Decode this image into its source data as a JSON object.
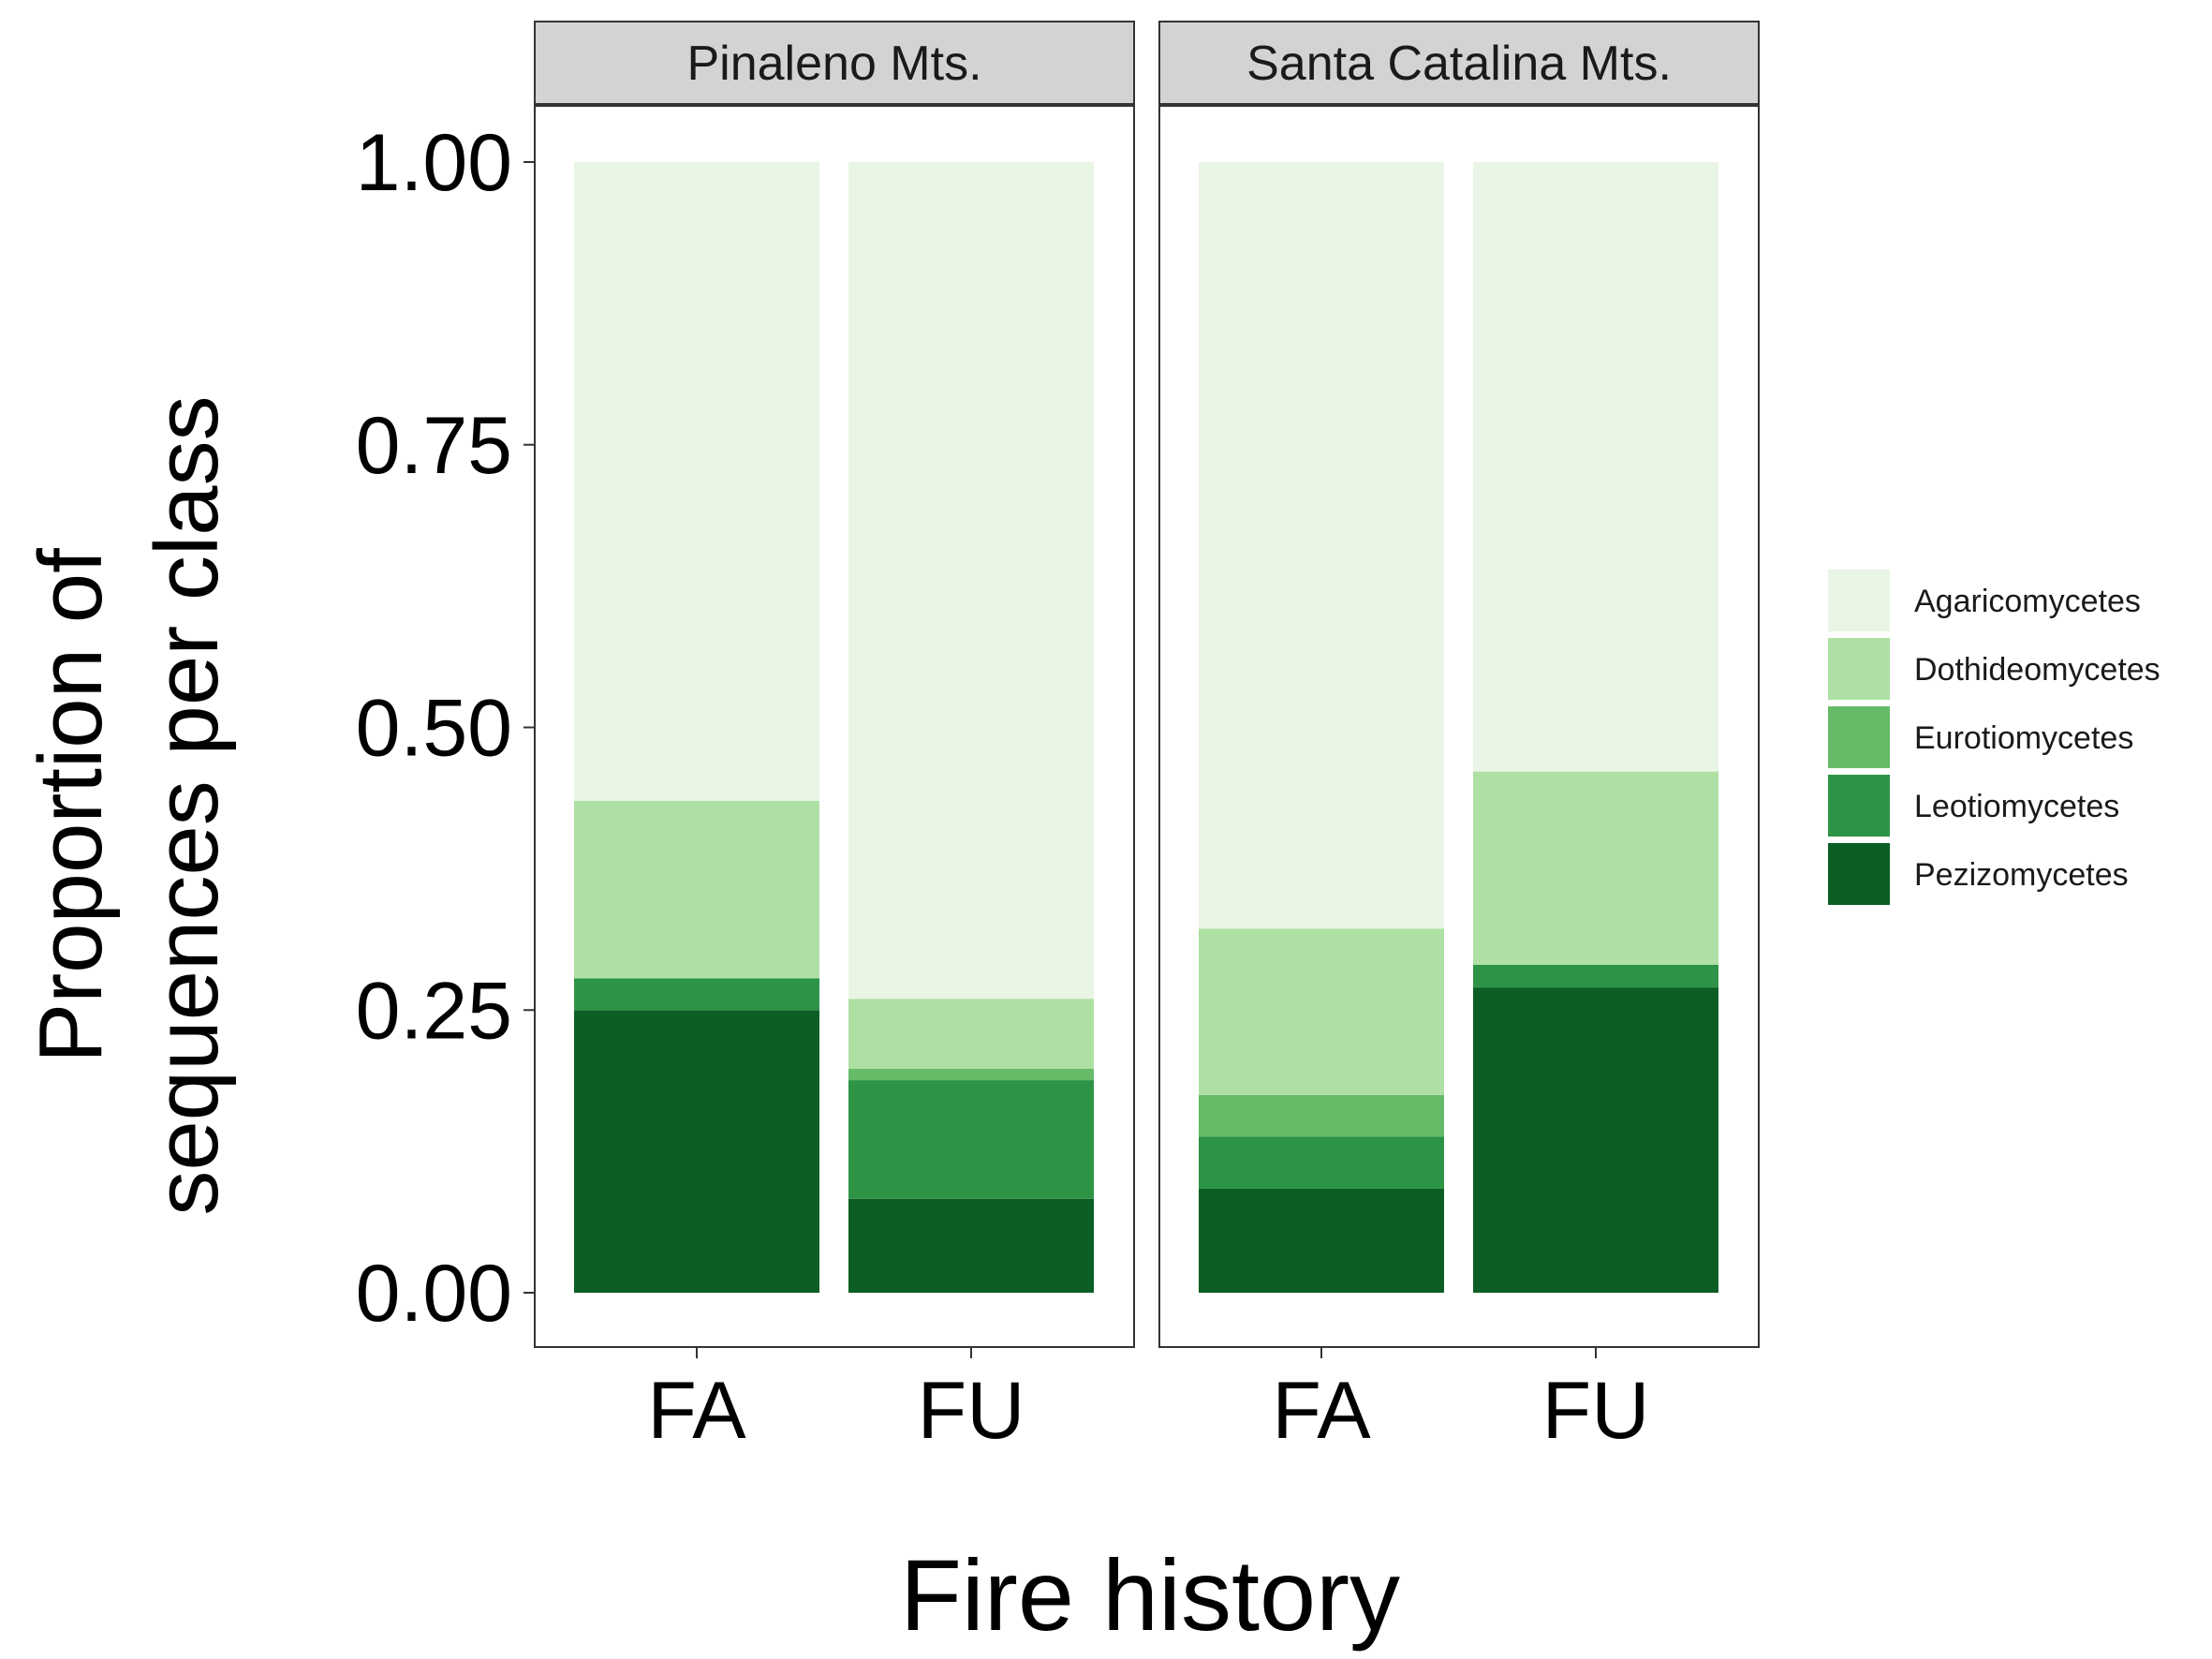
{
  "chart_data": {
    "type": "bar",
    "stacked": true,
    "facets": [
      "Pinaleno Mts.",
      "Santa Catalina Mts."
    ],
    "categories": [
      "FA",
      "FU"
    ],
    "xlabel": "Fire history",
    "ylabel_lines": [
      "Proportion of",
      "sequences per class"
    ],
    "ylim": [
      0,
      1
    ],
    "yticks": [
      "0.00",
      "0.25",
      "0.50",
      "0.75",
      "1.00"
    ],
    "ytick_values": [
      0,
      0.25,
      0.5,
      0.75,
      1.0
    ],
    "legend_position": "right",
    "grid": false,
    "series": [
      {
        "name": "Pezizomycetes",
        "color": "#0b5e24",
        "values": {
          "Pinaleno Mts.": [
            0.25,
            0.083
          ],
          "Santa Catalina Mts.": [
            0.092,
            0.27
          ]
        }
      },
      {
        "name": "Leotiomycetes",
        "color": "#2d9446",
        "values": {
          "Pinaleno Mts.": [
            0.028,
            0.105
          ],
          "Santa Catalina Mts.": [
            0.046,
            0.02
          ]
        }
      },
      {
        "name": "Eurotiomycetes",
        "color": "#66bb69",
        "values": {
          "Pinaleno Mts.": [
            0.0,
            0.01
          ],
          "Santa Catalina Mts.": [
            0.037,
            0.0
          ]
        }
      },
      {
        "name": "Dothideomycetes",
        "color": "#aee0a4",
        "values": {
          "Pinaleno Mts.": [
            0.157,
            0.062
          ],
          "Santa Catalina Mts.": [
            0.147,
            0.171
          ]
        }
      },
      {
        "name": "Agaricomycetes",
        "color": "#e9f5e5",
        "values": {
          "Pinaleno Mts.": [
            0.565,
            0.74
          ],
          "Santa Catalina Mts.": [
            0.678,
            0.539
          ]
        }
      }
    ],
    "legend_order": [
      "Agaricomycetes",
      "Dothideomycetes",
      "Eurotiomycetes",
      "Leotiomycetes",
      "Pezizomycetes"
    ]
  }
}
